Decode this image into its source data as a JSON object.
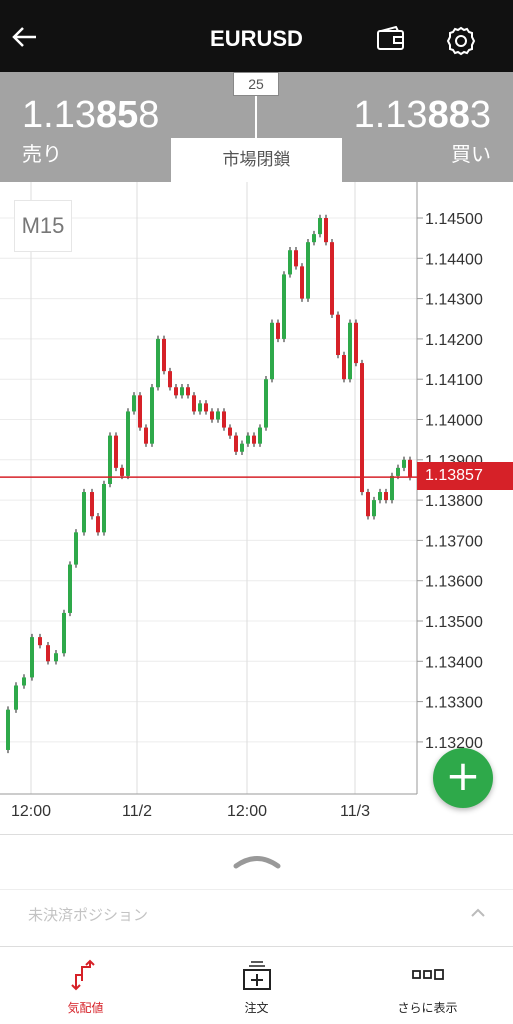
{
  "header": {
    "title": "EURUSD"
  },
  "quote": {
    "sell_price_pre": "1.13",
    "sell_price_big": "85",
    "sell_price_post": "8",
    "sell_label": "売り",
    "buy_price_pre": "1.13",
    "buy_price_big": "88",
    "buy_price_post": "3",
    "buy_label": "買い",
    "spread": "25",
    "market_status": "市場閉鎖"
  },
  "chart": {
    "timeframe": "M15",
    "current_price": "1.13857",
    "y_ticks": [
      "1.14500",
      "1.14400",
      "1.14300",
      "1.14200",
      "1.14100",
      "1.14000",
      "1.13900",
      "1.13800",
      "1.13700",
      "1.13600",
      "1.13500",
      "1.13400",
      "1.13300",
      "1.13200"
    ],
    "x_ticks": [
      "12:00",
      "11/2",
      "12:00",
      "11/3"
    ]
  },
  "positions": {
    "label": "未決済ポジション"
  },
  "tabs": [
    {
      "label": "気配値"
    },
    {
      "label": "注文"
    },
    {
      "label": "さらに表示"
    }
  ],
  "colors": {
    "up": "#2ea94a",
    "down": "#d62128",
    "header": "#111111",
    "quote_bg": "#a3a3a3"
  }
}
